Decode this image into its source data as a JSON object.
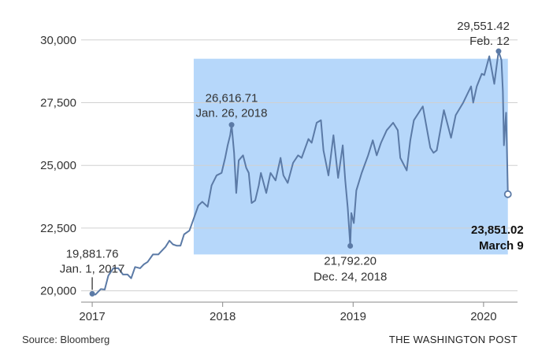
{
  "chart_data": {
    "type": "line",
    "title": "",
    "xlabel": "",
    "ylabel": "",
    "ylim": [
      19800,
      30400
    ],
    "xlim": [
      "2016-12-01",
      "2020-04-05"
    ],
    "y_ticks": [
      {
        "value": 20000,
        "label": "20,000"
      },
      {
        "value": 22500,
        "label": "22,500"
      },
      {
        "value": 25000,
        "label": "25,000"
      },
      {
        "value": 27500,
        "label": "27,500"
      },
      {
        "value": 30000,
        "label": "30,000"
      }
    ],
    "x_ticks": [
      {
        "date": "2017-01-01",
        "label": "2017"
      },
      {
        "date": "2018-01-01",
        "label": "2018"
      },
      {
        "date": "2019-01-01",
        "label": "2019"
      },
      {
        "date": "2020-01-01",
        "label": "2020"
      }
    ],
    "grid": "horizontal",
    "highlight_region": {
      "x_start": "2017-10-12",
      "x_end": "2020-03-09",
      "y_low": 21450,
      "y_high": 29250,
      "color": "#b6d7fa"
    },
    "series": [
      {
        "name": "",
        "color": "#5b7aa6",
        "points": [
          [
            "2017-01-01",
            19881.76
          ],
          [
            "2017-01-10",
            19850
          ],
          [
            "2017-01-25",
            20070
          ],
          [
            "2017-02-05",
            20050
          ],
          [
            "2017-02-15",
            20600
          ],
          [
            "2017-03-01",
            20900
          ],
          [
            "2017-03-15",
            20900
          ],
          [
            "2017-03-28",
            20650
          ],
          [
            "2017-04-10",
            20650
          ],
          [
            "2017-04-20",
            20500
          ],
          [
            "2017-05-01",
            20950
          ],
          [
            "2017-05-15",
            20900
          ],
          [
            "2017-05-25",
            21050
          ],
          [
            "2017-06-05",
            21150
          ],
          [
            "2017-06-20",
            21450
          ],
          [
            "2017-07-05",
            21450
          ],
          [
            "2017-07-15",
            21600
          ],
          [
            "2017-07-25",
            21750
          ],
          [
            "2017-08-05",
            22000
          ],
          [
            "2017-08-15",
            21850
          ],
          [
            "2017-08-25",
            21800
          ],
          [
            "2017-09-05",
            21800
          ],
          [
            "2017-09-15",
            22250
          ],
          [
            "2017-09-30",
            22400
          ],
          [
            "2017-10-10",
            22800
          ],
          [
            "2017-10-25",
            23400
          ],
          [
            "2017-11-05",
            23550
          ],
          [
            "2017-11-20",
            23350
          ],
          [
            "2017-12-01",
            24200
          ],
          [
            "2017-12-15",
            24600
          ],
          [
            "2017-12-29",
            24700
          ],
          [
            "2018-01-08",
            25300
          ],
          [
            "2018-01-15",
            25800
          ],
          [
            "2018-01-22",
            26200
          ],
          [
            "2018-01-26",
            26616.71
          ],
          [
            "2018-02-02",
            25500
          ],
          [
            "2018-02-08",
            23900
          ],
          [
            "2018-02-15",
            25200
          ],
          [
            "2018-02-27",
            25400
          ],
          [
            "2018-03-08",
            24900
          ],
          [
            "2018-03-15",
            24700
          ],
          [
            "2018-03-23",
            23500
          ],
          [
            "2018-04-02",
            23600
          ],
          [
            "2018-04-12",
            24200
          ],
          [
            "2018-04-18",
            24700
          ],
          [
            "2018-05-03",
            23900
          ],
          [
            "2018-05-15",
            24700
          ],
          [
            "2018-05-29",
            24400
          ],
          [
            "2018-06-12",
            25300
          ],
          [
            "2018-06-20",
            24600
          ],
          [
            "2018-07-02",
            24300
          ],
          [
            "2018-07-17",
            25100
          ],
          [
            "2018-07-31",
            25400
          ],
          [
            "2018-08-10",
            25300
          ],
          [
            "2018-08-29",
            26050
          ],
          [
            "2018-09-07",
            25900
          ],
          [
            "2018-09-21",
            26700
          ],
          [
            "2018-10-03",
            26800
          ],
          [
            "2018-10-10",
            25600
          ],
          [
            "2018-10-24",
            24600
          ],
          [
            "2018-11-07",
            26200
          ],
          [
            "2018-11-20",
            24500
          ],
          [
            "2018-12-03",
            25800
          ],
          [
            "2018-12-10",
            24400
          ],
          [
            "2018-12-17",
            23300
          ],
          [
            "2018-12-24",
            21792.2
          ],
          [
            "2018-12-27",
            23100
          ],
          [
            "2019-01-03",
            22700
          ],
          [
            "2019-01-10",
            24000
          ],
          [
            "2019-01-25",
            24700
          ],
          [
            "2019-02-12",
            25400
          ],
          [
            "2019-02-25",
            26000
          ],
          [
            "2019-03-08",
            25400
          ],
          [
            "2019-03-20",
            25900
          ],
          [
            "2019-04-05",
            26400
          ],
          [
            "2019-04-23",
            26700
          ],
          [
            "2019-05-06",
            26400
          ],
          [
            "2019-05-13",
            25300
          ],
          [
            "2019-05-31",
            24800
          ],
          [
            "2019-06-10",
            26000
          ],
          [
            "2019-06-20",
            26800
          ],
          [
            "2019-07-15",
            27350
          ],
          [
            "2019-08-05",
            25700
          ],
          [
            "2019-08-14",
            25500
          ],
          [
            "2019-08-23",
            25600
          ],
          [
            "2019-09-12",
            27200
          ],
          [
            "2019-10-02",
            26100
          ],
          [
            "2019-10-15",
            27000
          ],
          [
            "2019-11-05",
            27500
          ],
          [
            "2019-11-27",
            28150
          ],
          [
            "2019-12-03",
            27500
          ],
          [
            "2019-12-13",
            28150
          ],
          [
            "2019-12-27",
            28650
          ],
          [
            "2020-01-03",
            28600
          ],
          [
            "2020-01-17",
            29350
          ],
          [
            "2020-01-31",
            28250
          ],
          [
            "2020-02-12",
            29551.42
          ],
          [
            "2020-02-20",
            29200
          ],
          [
            "2020-02-24",
            27950
          ],
          [
            "2020-02-27",
            25800
          ],
          [
            "2020-03-02",
            26700
          ],
          [
            "2020-03-04",
            27100
          ],
          [
            "2020-03-06",
            25900
          ],
          [
            "2020-03-09",
            23851.02
          ]
        ]
      }
    ],
    "annotations": [
      {
        "date": "2017-01-01",
        "value": 19881.76,
        "value_label": "19,881.76",
        "date_label": "Jan. 1, 2017",
        "style": "filled"
      },
      {
        "date": "2018-01-26",
        "value": 26616.71,
        "value_label": "26,616.71",
        "date_label": "Jan. 26, 2018",
        "style": "filled"
      },
      {
        "date": "2018-12-24",
        "value": 21792.2,
        "value_label": "21,792.20",
        "date_label": "Dec. 24, 2018",
        "style": "filled"
      },
      {
        "date": "2020-02-12",
        "value": 29551.42,
        "value_label": "29,551.42",
        "date_label": "Feb. 12",
        "style": "filled"
      },
      {
        "date": "2020-03-09",
        "value": 23851.02,
        "value_label": "23,851.02",
        "date_label": "March 9",
        "style": "hollow"
      }
    ]
  },
  "footer": {
    "source": "Source: Bloomberg",
    "credit": "THE WASHINGTON POST"
  }
}
